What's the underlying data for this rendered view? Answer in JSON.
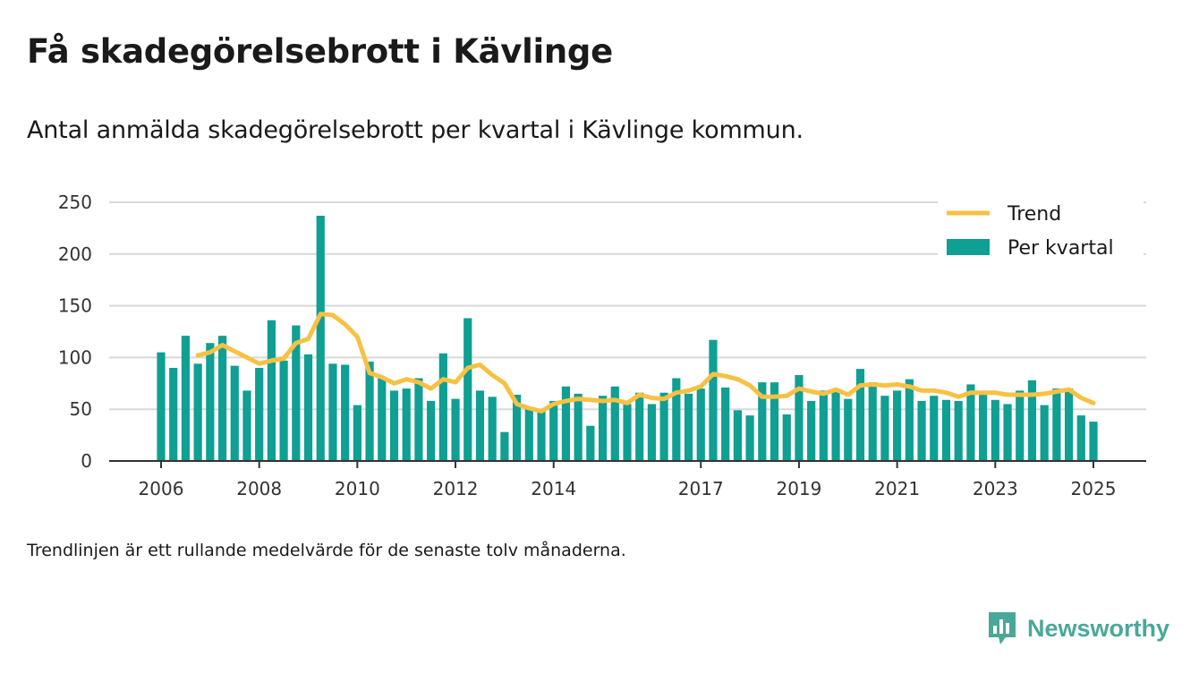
{
  "title": "Få skadegörelsebrott i Kävlinge",
  "subtitle": "Antal anmälda skadegörelsebrott per kvartal i Kävlinge kommun.",
  "footnote": "Trendlinjen är ett rullande medelvärde för de senaste tolv månaderna.",
  "brand": {
    "name": "Newsworthy",
    "icon": "newsworthy-chart-bubble-icon"
  },
  "colors": {
    "bars": "#0f9f93",
    "trend": "#f7c144",
    "grid": "#d9d9d9",
    "axis": "#333333",
    "brand": "#4aa89a"
  },
  "chart_data": {
    "type": "bar",
    "ylim": [
      0,
      250
    ],
    "yticks": [
      0,
      50,
      100,
      150,
      200,
      250
    ],
    "xtick_labels": [
      "2006",
      "2008",
      "2010",
      "2012",
      "2014",
      "2017",
      "2019",
      "2021",
      "2023",
      "2025"
    ],
    "grid": true,
    "legend_position": "top-right",
    "legend": [
      "Trend",
      "Per kvartal"
    ],
    "series": [
      {
        "name": "Per kvartal",
        "type": "bar",
        "x": [
          2006.0,
          2006.25,
          2006.5,
          2006.75,
          2007.0,
          2007.25,
          2007.5,
          2007.75,
          2008.0,
          2008.25,
          2008.5,
          2008.75,
          2009.0,
          2009.25,
          2009.5,
          2009.75,
          2010.0,
          2010.25,
          2010.5,
          2010.75,
          2011.0,
          2011.25,
          2011.5,
          2011.75,
          2012.0,
          2012.25,
          2012.5,
          2012.75,
          2013.0,
          2013.25,
          2013.5,
          2013.75,
          2014.0,
          2014.25,
          2014.5,
          2014.75,
          2015.0,
          2015.25,
          2015.5,
          2015.75,
          2016.0,
          2016.25,
          2016.5,
          2016.75,
          2017.0,
          2017.25,
          2017.5,
          2017.75,
          2018.0,
          2018.25,
          2018.5,
          2018.75,
          2019.0,
          2019.25,
          2019.5,
          2019.75,
          2020.0,
          2020.25,
          2020.5,
          2020.75,
          2021.0,
          2021.25,
          2021.5,
          2021.75,
          2022.0,
          2022.25,
          2022.5,
          2022.75,
          2023.0,
          2023.25,
          2023.5,
          2023.75,
          2024.0,
          2024.25,
          2024.5,
          2024.75,
          2025.0
        ],
        "values": [
          105,
          90,
          121,
          94,
          114,
          121,
          92,
          68,
          90,
          136,
          97,
          131,
          103,
          237,
          94,
          93,
          54,
          96,
          81,
          68,
          70,
          80,
          58,
          104,
          60,
          138,
          68,
          62,
          28,
          64,
          52,
          48,
          58,
          72,
          65,
          34,
          63,
          72,
          55,
          66,
          55,
          66,
          80,
          65,
          70,
          117,
          71,
          49,
          44,
          76,
          76,
          45,
          83,
          58,
          68,
          68,
          60,
          89,
          76,
          63,
          68,
          79,
          58,
          63,
          59,
          58,
          74,
          64,
          59,
          55,
          68,
          78,
          54,
          70,
          70,
          44,
          38
        ]
      },
      {
        "name": "Trend",
        "type": "line",
        "x": [
          2006.75,
          2007.0,
          2007.25,
          2007.5,
          2007.75,
          2008.0,
          2008.25,
          2008.5,
          2008.75,
          2009.0,
          2009.25,
          2009.5,
          2009.75,
          2010.0,
          2010.25,
          2010.5,
          2010.75,
          2011.0,
          2011.25,
          2011.5,
          2011.75,
          2012.0,
          2012.25,
          2012.5,
          2012.75,
          2013.0,
          2013.25,
          2013.5,
          2013.75,
          2014.0,
          2014.25,
          2014.5,
          2014.75,
          2015.0,
          2015.25,
          2015.5,
          2015.75,
          2016.0,
          2016.25,
          2016.5,
          2016.75,
          2017.0,
          2017.25,
          2017.5,
          2017.75,
          2018.0,
          2018.25,
          2018.5,
          2018.75,
          2019.0,
          2019.25,
          2019.5,
          2019.75,
          2020.0,
          2020.25,
          2020.5,
          2020.75,
          2021.0,
          2021.25,
          2021.5,
          2021.75,
          2022.0,
          2022.25,
          2022.5,
          2022.75,
          2023.0,
          2023.25,
          2023.5,
          2023.75,
          2024.0,
          2024.25,
          2024.5,
          2024.75,
          2025.0
        ],
        "values": [
          102,
          105,
          112,
          106,
          100,
          94,
          97,
          99,
          114,
          118,
          142,
          141,
          132,
          120,
          85,
          81,
          75,
          79,
          76,
          70,
          79,
          76,
          90,
          93,
          83,
          75,
          55,
          51,
          48,
          55,
          58,
          60,
          59,
          58,
          59,
          56,
          64,
          61,
          60,
          66,
          68,
          72,
          84,
          82,
          79,
          73,
          62,
          62,
          63,
          70,
          67,
          65,
          69,
          64,
          73,
          74,
          73,
          74,
          72,
          68,
          68,
          66,
          62,
          66,
          66,
          66,
          64,
          64,
          64,
          65,
          67,
          69,
          61,
          56
        ]
      }
    ]
  }
}
